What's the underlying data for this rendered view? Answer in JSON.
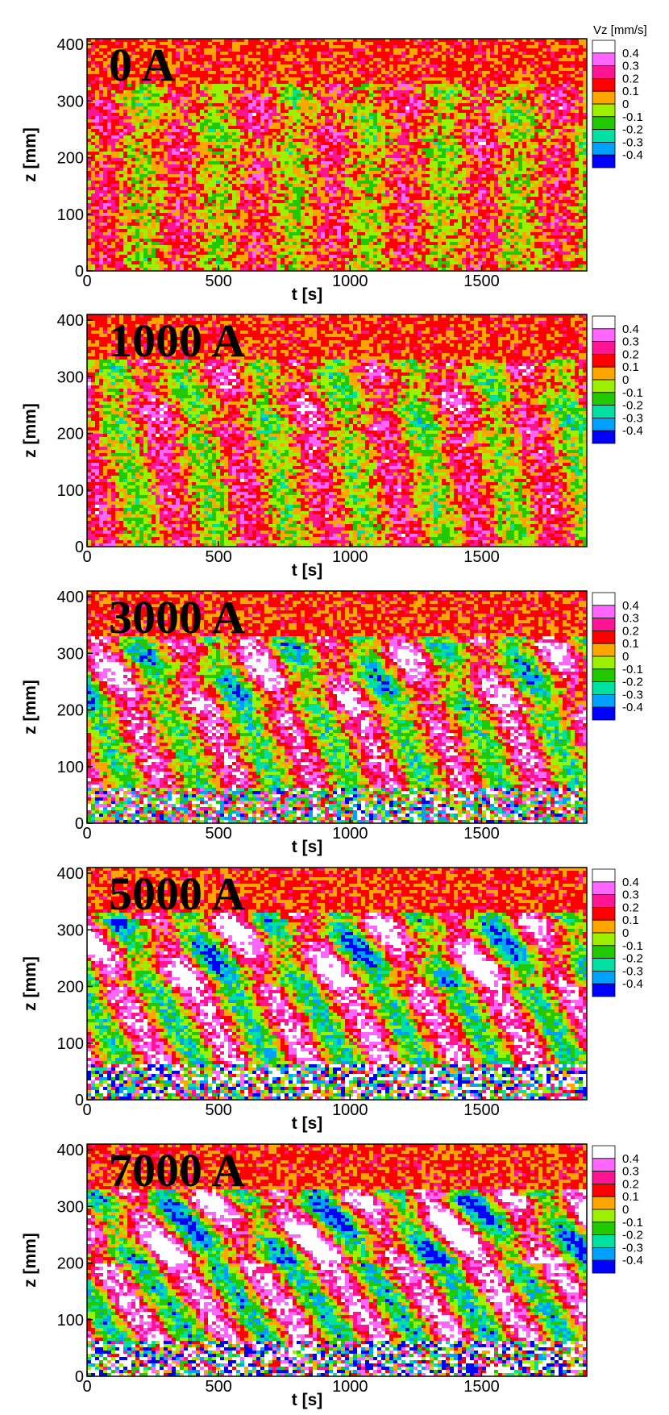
{
  "figure": {
    "description_units": "Vz [mm/s]"
  },
  "chart_data": [
    {
      "type": "heatmap",
      "title": "0 A",
      "xlabel": "t [s]",
      "ylabel": "z [mm]",
      "xlim": [
        0,
        1900
      ],
      "ylim": [
        0,
        410
      ],
      "xticks": [
        0,
        500,
        1000,
        1500
      ],
      "yticks": [
        0,
        100,
        200,
        300,
        400
      ],
      "colorbar_title": "Vz [mm/s]",
      "colorbar_levels": [
        "0.4",
        "0.3",
        "0.2",
        "0.1",
        "0",
        "-0.1",
        "-0.2",
        "-0.3",
        "-0.4"
      ],
      "colorbar_colors": [
        "#ffffff",
        "#ff66ff",
        "#ff1493",
        "#ff0000",
        "#ffa500",
        "#9cf000",
        "#22c800",
        "#00e0a0",
        "#00a0ff",
        "#0000ff"
      ],
      "stripe_slope": 0,
      "intensity": 0.35
    },
    {
      "type": "heatmap",
      "title": "1000 A",
      "xlabel": "t [s]",
      "ylabel": "z [mm]",
      "xlim": [
        0,
        1900
      ],
      "ylim": [
        0,
        410
      ],
      "xticks": [
        0,
        500,
        1000,
        1500
      ],
      "yticks": [
        0,
        100,
        200,
        300,
        400
      ],
      "colorbar_title": "",
      "colorbar_levels": [
        "0.4",
        "0.3",
        "0.2",
        "0.1",
        "0",
        "-0.1",
        "-0.2",
        "-0.3",
        "-0.4"
      ],
      "colorbar_colors": [
        "#ffffff",
        "#ff66ff",
        "#ff1493",
        "#ff0000",
        "#ffa500",
        "#9cf000",
        "#22c800",
        "#00e0a0",
        "#00a0ff",
        "#0000ff"
      ],
      "stripe_slope": 0.15,
      "intensity": 0.5
    },
    {
      "type": "heatmap",
      "title": "3000 A",
      "xlabel": "t [s]",
      "ylabel": "z [mm]",
      "xlim": [
        0,
        1900
      ],
      "ylim": [
        0,
        410
      ],
      "xticks": [
        0,
        500,
        1000,
        1500
      ],
      "yticks": [
        0,
        100,
        200,
        300,
        400
      ],
      "colorbar_title": "",
      "colorbar_levels": [
        "0.4",
        "0.3",
        "0.2",
        "0.1",
        "0",
        "-0.1",
        "-0.2",
        "-0.3",
        "-0.4"
      ],
      "colorbar_colors": [
        "#ffffff",
        "#ff66ff",
        "#ff1493",
        "#ff0000",
        "#ffa500",
        "#9cf000",
        "#22c800",
        "#00e0a0",
        "#00a0ff",
        "#0000ff"
      ],
      "stripe_slope": 0.35,
      "intensity": 0.75
    },
    {
      "type": "heatmap",
      "title": "5000 A",
      "xlabel": "t [s]",
      "ylabel": "z [mm]",
      "xlim": [
        0,
        1900
      ],
      "ylim": [
        0,
        410
      ],
      "xticks": [
        0,
        500,
        1000,
        1500
      ],
      "yticks": [
        0,
        100,
        200,
        300,
        400
      ],
      "colorbar_title": "",
      "colorbar_levels": [
        "0.4",
        "0.3",
        "0.2",
        "0.1",
        "0",
        "-0.1",
        "-0.2",
        "-0.3",
        "-0.4"
      ],
      "colorbar_colors": [
        "#ffffff",
        "#ff66ff",
        "#ff1493",
        "#ff0000",
        "#ffa500",
        "#9cf000",
        "#22c800",
        "#00e0a0",
        "#00a0ff",
        "#0000ff"
      ],
      "stripe_slope": 0.45,
      "intensity": 0.9
    },
    {
      "type": "heatmap",
      "title": "7000 A",
      "xlabel": "t [s]",
      "ylabel": "z [mm]",
      "xlim": [
        0,
        1900
      ],
      "ylim": [
        0,
        410
      ],
      "xticks": [
        0,
        500,
        1000,
        1500
      ],
      "yticks": [
        0,
        100,
        200,
        300,
        400
      ],
      "colorbar_title": "",
      "colorbar_levels": [
        "0.4",
        "0.3",
        "0.2",
        "0.1",
        "0",
        "-0.1",
        "-0.2",
        "-0.3",
        "-0.4"
      ],
      "colorbar_colors": [
        "#ffffff",
        "#ff66ff",
        "#ff1493",
        "#ff0000",
        "#ffa500",
        "#9cf000",
        "#22c800",
        "#00e0a0",
        "#00a0ff",
        "#0000ff"
      ],
      "stripe_slope": 0.55,
      "intensity": 1.0
    }
  ]
}
